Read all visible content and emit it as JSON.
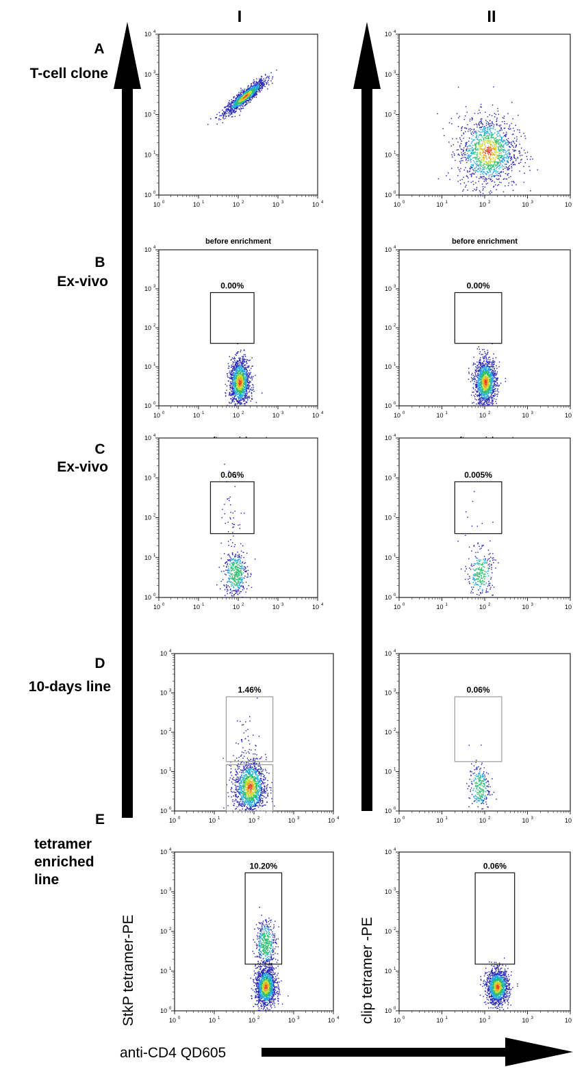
{
  "columns": [
    "I",
    "II"
  ],
  "rows": [
    {
      "letter": "A",
      "name": "T-cell clone"
    },
    {
      "letter": "B",
      "name": "Ex-vivo"
    },
    {
      "letter": "C",
      "name": "Ex-vivo"
    },
    {
      "letter": "D",
      "name": "10-days line"
    },
    {
      "letter": "E",
      "name": "tetramer enriched line"
    }
  ],
  "axis_labels": {
    "x": "anti-CD4 QD605",
    "y_col1": "StkP tetramer-PE",
    "y_col2": "clip tetramer -PE"
  },
  "chart_data": [
    {
      "type": "scatter",
      "panel": "A-I",
      "scale": "log",
      "xlim": [
        1,
        10000
      ],
      "ylim": [
        1,
        10000
      ],
      "populations": [
        {
          "center": [
            150,
            280
          ],
          "spread": [
            0.25,
            0.22
          ],
          "density": "high"
        }
      ],
      "gate": null
    },
    {
      "type": "scatter",
      "panel": "A-II",
      "scale": "log",
      "xlim": [
        1,
        10000
      ],
      "ylim": [
        1,
        10000
      ],
      "populations": [
        {
          "center": [
            120,
            12
          ],
          "spread": [
            0.35,
            0.45
          ],
          "density": "high"
        }
      ],
      "gate": null
    },
    {
      "type": "scatter",
      "panel": "B-I",
      "title": "before enrichment",
      "scale": "log",
      "xlim": [
        1,
        10000
      ],
      "ylim": [
        1,
        10000
      ],
      "populations": [
        {
          "center": [
            110,
            4
          ],
          "spread": [
            0.13,
            0.3
          ],
          "density": "high"
        }
      ],
      "gate": {
        "label": "0.00%",
        "x": [
          20,
          250
        ],
        "y": [
          40,
          800
        ]
      }
    },
    {
      "type": "scatter",
      "panel": "B-II",
      "title": "before enrichment",
      "scale": "log",
      "xlim": [
        1,
        10000
      ],
      "ylim": [
        1,
        10000
      ],
      "populations": [
        {
          "center": [
            105,
            4
          ],
          "spread": [
            0.13,
            0.3
          ],
          "density": "high"
        }
      ],
      "gate": {
        "label": "0.00%",
        "x": [
          20,
          250
        ],
        "y": [
          40,
          800
        ]
      }
    },
    {
      "type": "scatter",
      "panel": "C-I",
      "title": "after enrichment",
      "scale": "log",
      "xlim": [
        1,
        10000
      ],
      "ylim": [
        1,
        10000
      ],
      "populations": [
        {
          "center": [
            85,
            4
          ],
          "spread": [
            0.15,
            0.3
          ],
          "density": "medium"
        },
        {
          "center": [
            70,
            100
          ],
          "spread": [
            0.12,
            0.45
          ],
          "density": "sparse"
        }
      ],
      "gate": {
        "label": "0.06%",
        "x": [
          20,
          250
        ],
        "y": [
          40,
          800
        ]
      }
    },
    {
      "type": "scatter",
      "panel": "C-II",
      "title": "after enrichment",
      "scale": "log",
      "xlim": [
        1,
        10000
      ],
      "ylim": [
        1,
        10000
      ],
      "populations": [
        {
          "center": [
            80,
            4
          ],
          "spread": [
            0.15,
            0.3
          ],
          "density": "low"
        },
        {
          "center": [
            60,
            50
          ],
          "spread": [
            0.15,
            0.4
          ],
          "density": "very sparse"
        }
      ],
      "gate": {
        "label": "0.005%",
        "x": [
          20,
          250
        ],
        "y": [
          40,
          800
        ]
      }
    },
    {
      "type": "scatter",
      "panel": "D-I",
      "scale": "log",
      "xlim": [
        1,
        10000
      ],
      "ylim": [
        1,
        10000
      ],
      "populations": [
        {
          "center": [
            80,
            4
          ],
          "spread": [
            0.2,
            0.35
          ],
          "density": "high"
        },
        {
          "center": [
            70,
            60
          ],
          "spread": [
            0.15,
            0.4
          ],
          "density": "sparse"
        }
      ],
      "gates": [
        {
          "label": "1.46%",
          "x": [
            20,
            300
          ],
          "y": [
            18,
            800
          ]
        },
        {
          "label": "",
          "x": [
            20,
            300
          ],
          "y": [
            1,
            15
          ]
        }
      ]
    },
    {
      "type": "scatter",
      "panel": "D-II",
      "scale": "log",
      "xlim": [
        1,
        10000
      ],
      "ylim": [
        1,
        10000
      ],
      "populations": [
        {
          "center": [
            75,
            4
          ],
          "spread": [
            0.12,
            0.3
          ],
          "density": "low"
        }
      ],
      "gate": {
        "label": "0.06%",
        "x": [
          20,
          250
        ],
        "y": [
          18,
          800
        ]
      }
    },
    {
      "type": "scatter",
      "panel": "E-I",
      "scale": "log",
      "xlim": [
        1,
        10000
      ],
      "ylim": [
        1,
        10000
      ],
      "populations": [
        {
          "center": [
            200,
            4
          ],
          "spread": [
            0.13,
            0.25
          ],
          "density": "high"
        },
        {
          "center": [
            200,
            50
          ],
          "spread": [
            0.13,
            0.3
          ],
          "density": "medium"
        }
      ],
      "gate": {
        "label": "10.20%",
        "x": [
          60,
          500
        ],
        "y": [
          15,
          3000
        ]
      }
    },
    {
      "type": "scatter",
      "panel": "E-II",
      "scale": "log",
      "xlim": [
        1,
        10000
      ],
      "ylim": [
        1,
        10000
      ],
      "populations": [
        {
          "center": [
            200,
            4
          ],
          "spread": [
            0.13,
            0.22
          ],
          "density": "high"
        }
      ],
      "gate": {
        "label": "0.06%",
        "x": [
          60,
          500
        ],
        "y": [
          15,
          3000
        ]
      }
    }
  ],
  "colors": {
    "low": "#2b2ab8",
    "mid1": "#22a8e0",
    "mid2": "#2fbf6f",
    "high1": "#c8dc3a",
    "high2": "#f4a321",
    "peak": "#e8402c"
  }
}
